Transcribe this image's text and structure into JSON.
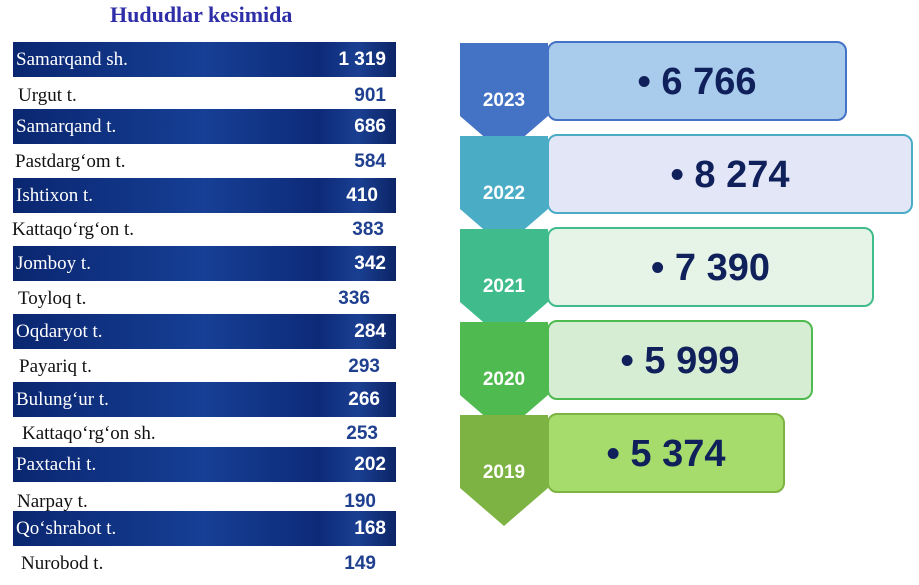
{
  "title": "Hududlar kesimida",
  "regions": [
    {
      "name": "Samarqand sh.",
      "value": "1 319"
    },
    {
      "name": "Urgut t.",
      "value": "901"
    },
    {
      "name": "Samarqand t.",
      "value": "686"
    },
    {
      "name": "Pastdarg‘om t.",
      "value": "584"
    },
    {
      "name": "Ishtixon t.",
      "value": "410"
    },
    {
      "name": "Kattaqo‘rg‘on t.",
      "value": "383"
    },
    {
      "name": "Jomboy t.",
      "value": "342"
    },
    {
      "name": "Toyloq t.",
      "value": "336"
    },
    {
      "name": "Oqdaryot t.",
      "value": "284"
    },
    {
      "name": "Payariq t.",
      "value": "293"
    },
    {
      "name": "Bulung‘ur t.",
      "value": "266"
    },
    {
      "name": "Kattaqo‘rg‘on sh.",
      "value": "253"
    },
    {
      "name": "Paxtachi t.",
      "value": "202"
    },
    {
      "name": "Narpay t.",
      "value": "190"
    },
    {
      "name": "Qo‘shrabot t.",
      "value": "168"
    },
    {
      "name": "Nurobod t.",
      "value": "149"
    }
  ],
  "chart_data": {
    "type": "bar",
    "categories": [
      "2023",
      "2022",
      "2021",
      "2020",
      "2019"
    ],
    "values": [
      6766,
      8274,
      7390,
      5999,
      5374
    ],
    "value_labels": [
      "• 6 766",
      "• 8 274",
      "• 7 390",
      "• 5 999",
      "• 5 374"
    ],
    "colors": {
      "chevrons": [
        "#4472c4",
        "#4bacc6",
        "#3fbb8c",
        "#4fba4f",
        "#7cb342"
      ],
      "boxes": [
        "#a9cbec",
        "#e2e6f6",
        "#e5f4e6",
        "#d6ecd3",
        "#a5dc6c"
      ],
      "borders": [
        "#4472c4",
        "#4bacc6",
        "#3fbb8c",
        "#4fba4f",
        "#7cb342"
      ]
    }
  }
}
